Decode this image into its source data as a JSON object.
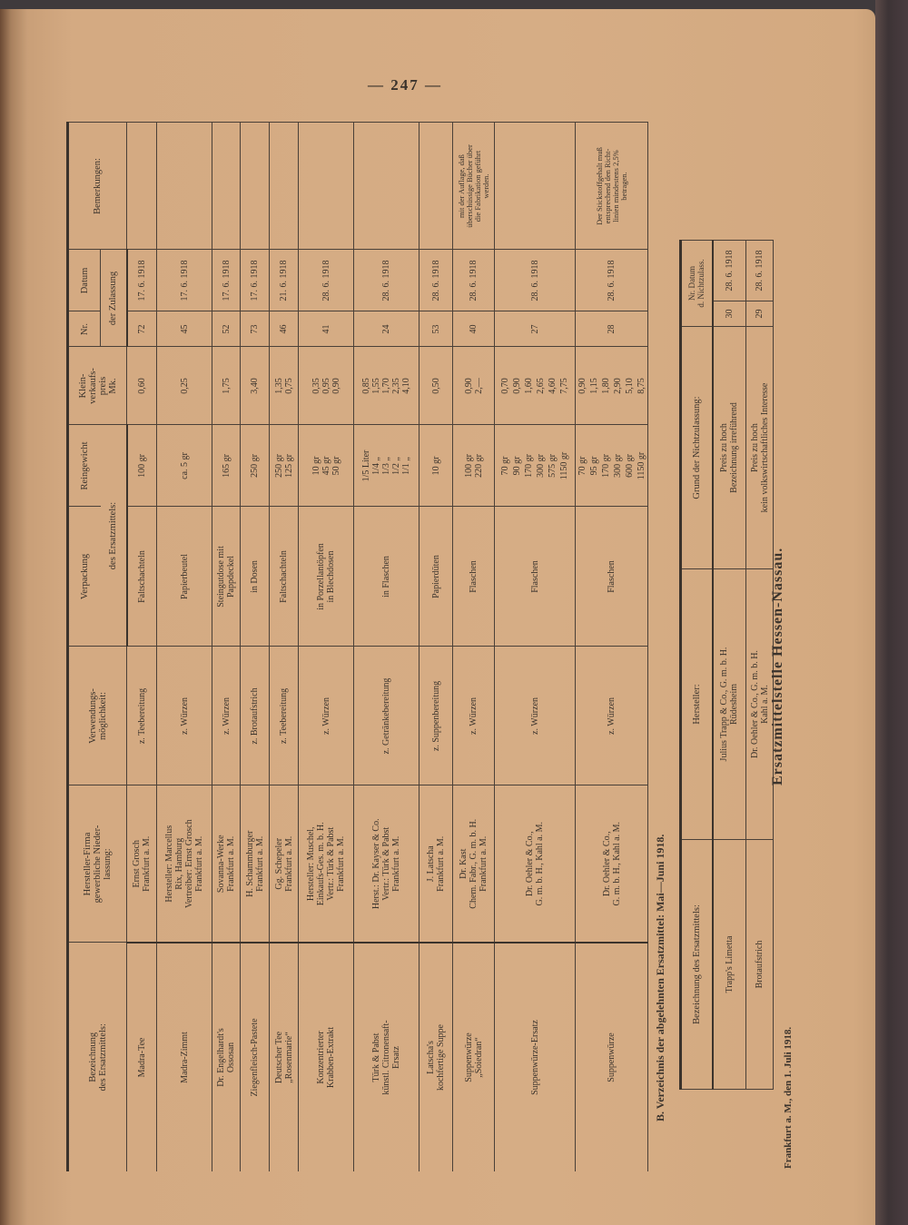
{
  "page_number": "— 247 —",
  "colors": {
    "paper": "#d6ad85",
    "ink": "#3b332c",
    "binding": "#3f3a3c"
  },
  "main_table": {
    "headers": {
      "name": "Bezeichnung\ndes Ersatzmittels:",
      "maker": "Hersteller-Firma\ngewerbliche Nieder-\nlassung:",
      "use": "Verwendungs-\nmöglichkeit:",
      "packaging": "Verpackung",
      "weight": "Reingewicht",
      "packaging_sub": "des Ersatzmittels:",
      "price": "Klein-\nverkaufs-\npreis\nMk.",
      "nr": "Nr.",
      "date": "Datum",
      "approval_sub": "der Zulassung",
      "remarks": "Bemerkungen:"
    },
    "rows": [
      {
        "name": "Madra-Tee",
        "maker": "Ernst Grosch\nFrankfurt a. M.",
        "use": "z. Teebereitung",
        "packaging": "Faltschachteln",
        "weight": "100 gr",
        "price": "0,60",
        "nr": "72",
        "date": "17. 6. 1918",
        "remarks": ""
      },
      {
        "name": "Madra-Zimmt",
        "maker": "Hersteller: Marcellus\nRix, Hamburg\nVertreiber: Ernst Grosch\nFrankfurt a. M.",
        "use": "z. Würzen",
        "packaging": "Papierbeutel",
        "weight": "ca. 5 gr",
        "price": "0,25",
        "nr": "45",
        "date": "17. 6. 1918",
        "remarks": ""
      },
      {
        "name": "Dr. Engelhardt's\nOssosan",
        "maker": "Sovanna-Werke\nFrankfurt a. M.",
        "use": "z. Würzen",
        "packaging": "Steingutdose mit\nPappdeckel",
        "weight": "165 gr",
        "price": "1,75",
        "nr": "52",
        "date": "17. 6. 1918",
        "remarks": ""
      },
      {
        "name": "Ziegenfleisch-Pastete",
        "maker": "H. Schammburger\nFrankfurt a. M.",
        "use": "z. Brotaufstrich",
        "packaging": "in Dosen",
        "weight": "250 gr",
        "price": "3,40",
        "nr": "73",
        "date": "17. 6. 1918",
        "remarks": ""
      },
      {
        "name": "Deutscher Tee\n„Rosenmarie“",
        "maker": "Gg. Schepeler\nFrankfurt a. M.",
        "use": "z. Teebereitung",
        "packaging": "Faltschachteln",
        "weight": "250 gr\n125 gr",
        "price": "1,35\n0,75",
        "nr": "46",
        "date": "21. 6. 1918",
        "remarks": ""
      },
      {
        "name": "Konzentrierter\nKrabben-Extrakt",
        "maker": "Hersteller: Muschel,\nEinkaufs-Ges. m. b. H.\nVertr.: Türk & Pabst\nFrankfurt a. M.",
        "use": "z. Würzen",
        "packaging": "in Porzellantöpfen\nin Blechdosen",
        "weight": "10 gr\n45 gr\n50 gr",
        "price": "0,35\n0,95\n0,90",
        "nr": "41",
        "date": "28. 6. 1918",
        "remarks": ""
      },
      {
        "name": "Türk & Pabst\nkünstl. Citronensaft-\nErsatz",
        "maker": "Herst.: Dr. Kayser & Co.\nVertr.: Türk & Pabst\nFrankfurt a. M.",
        "use": "z. Getränkebereitung",
        "packaging": "in Flaschen",
        "weight": "1/5 Liter\n1/4   „  \n1/3   „  \n1/2   „  \n1/1   „  ",
        "price": "0,85\n1,55\n1,70\n2,35\n4,10",
        "nr": "24",
        "date": "28. 6. 1918",
        "remarks": ""
      },
      {
        "name": "Latscha's\nkochfertige Suppe",
        "maker": "J. Latscha\nFrankfurt a. M.",
        "use": "z. Suppenbereitung",
        "packaging": "Papierdüten",
        "weight": "10 gr",
        "price": "0,50",
        "nr": "53",
        "date": "28. 6. 1918",
        "remarks": ""
      },
      {
        "name": "Suppenwürze\n„Soiedran“",
        "maker": "Dr. Kast\nChem. Fabr., G. m. b. H.\nFrankfurt a. M.",
        "use": "z. Würzen",
        "packaging": "Flaschen",
        "weight": "100 gr\n220 gr",
        "price": "0,90\n2,—",
        "nr": "40",
        "date": "28. 6. 1918",
        "remarks": "mit der Auflage, daß\nüberschüssige Bücher über\ndie Fabrikation geführt\nwerden."
      },
      {
        "name": "Suppenwürze-Ersatz",
        "maker": "Dr. Oehler & Co.,\nG. m. b. H., Kahl a. M.",
        "use": "z. Würzen",
        "packaging": "Flaschen",
        "weight": "70 gr\n90 gr\n170 gr\n300 gr\n575 gr\n1150 gr",
        "price": "0,70\n0,90\n1,60\n2,65\n4,60\n7,75",
        "nr": "27",
        "date": "28. 6. 1918",
        "remarks": ""
      },
      {
        "name": "Suppenwürze",
        "maker": "Dr. Oehler & Co.,\nG. m. b. H., Kahl a. M.",
        "use": "z. Würzen",
        "packaging": "Flaschen",
        "weight": "70 gr\n95 gr\n170 gr\n300 gr\n600 gr\n1150 gr",
        "price": "0,90\n1,15\n1,80\n2,90\n5,10\n8,75",
        "nr": "28",
        "date": "28. 6. 1918",
        "remarks": "Der Stickstoffgehalt muß\nentsprechend den Richt-\nlinien mindestens 2,5%\nbetragen."
      }
    ]
  },
  "section_b": {
    "heading": "B. Verzeichnis der abgelehnten Ersatzmittel: Mai—Juni 1918.",
    "headers": {
      "name": "Bezeichnung des Ersatzmittels:",
      "maker": "Hersteller:",
      "reason": "Grund der Nichtzulassung:",
      "nr": "Nr.",
      "date": "Datum",
      "sub": "d. Nichtzulass."
    },
    "rows": [
      {
        "name": "Trapp's Limetta",
        "maker": "Julius Trapp & Co., G. m. b. H.\nRüdesheim",
        "reason": "Preis zu hoch\nBezeichnung irreführend",
        "nr": "30",
        "date": "28. 6. 1918"
      },
      {
        "name": "Brotaufstrich",
        "maker": "Dr. Oehler & Co., G. m. b. H.\nKahl a. M.",
        "reason": "Preis zu hoch\nkein volkswirtschaftliches Interesse",
        "nr": "29",
        "date": "28. 6. 1918"
      }
    ]
  },
  "office": "Ersatzmittelstelle Hessen-Nassau.",
  "footer": "Frankfurt a. M., den 1. Juli 1918."
}
